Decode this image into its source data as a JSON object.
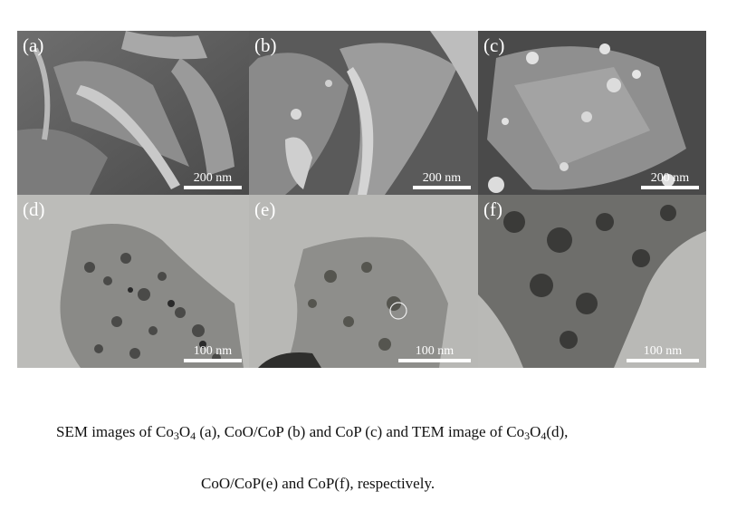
{
  "figure": {
    "panels": [
      {
        "label": "(a)",
        "scale": "200 nm",
        "kind": "sem"
      },
      {
        "label": "(b)",
        "scale": "200 nm",
        "kind": "sem"
      },
      {
        "label": "(c)",
        "scale": "200 nm",
        "kind": "sem"
      },
      {
        "label": "(d)",
        "scale": "100 nm",
        "kind": "tem"
      },
      {
        "label": "(e)",
        "scale": "100 nm",
        "kind": "tem"
      },
      {
        "label": "(f)",
        "scale": "100 nm",
        "kind": "tem"
      }
    ]
  },
  "caption": {
    "line1": {
      "p1": "SEM images of Co",
      "s1": "3",
      "p2": "O",
      "s2": "4",
      "p3": " (a), CoO/CoP (b) and CoP (c) and TEM image of Co",
      "s3": "3",
      "p4": "O",
      "s4": "4",
      "p5": "(d),"
    },
    "line2": "CoO/CoP(e) and CoP(f), respectively."
  },
  "colors": {
    "sem_dark": "#3a3a3a",
    "sem_mid": "#8a8a8a",
    "sem_light": "#d8d8d8",
    "tem_bg": "#b9b9b6",
    "tem_dark": "#2a2a2a"
  }
}
